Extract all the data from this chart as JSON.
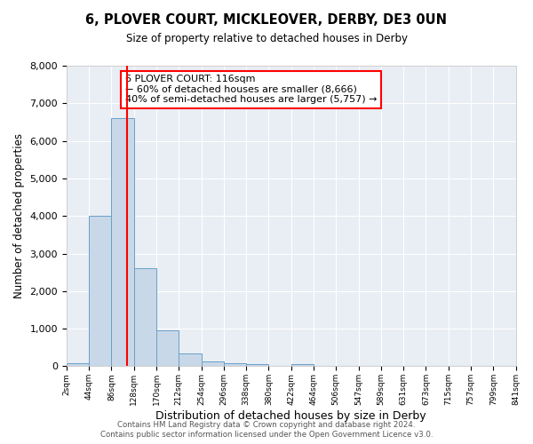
{
  "title": "6, PLOVER COURT, MICKLEOVER, DERBY, DE3 0UN",
  "subtitle": "Size of property relative to detached houses in Derby",
  "xlabel": "Distribution of detached houses by size in Derby",
  "ylabel": "Number of detached properties",
  "bar_color": "#c8d8e8",
  "bar_edge_color": "#6aa0c8",
  "background_color": "#e8eef4",
  "grid_color": "#ffffff",
  "ylim": [
    0,
    8000
  ],
  "yticks": [
    0,
    1000,
    2000,
    3000,
    4000,
    5000,
    6000,
    7000,
    8000
  ],
  "bin_labels": [
    "2sqm",
    "44sqm",
    "86sqm",
    "128sqm",
    "170sqm",
    "212sqm",
    "254sqm",
    "296sqm",
    "338sqm",
    "380sqm",
    "422sqm",
    "464sqm",
    "506sqm",
    "547sqm",
    "589sqm",
    "631sqm",
    "673sqm",
    "715sqm",
    "757sqm",
    "799sqm",
    "841sqm"
  ],
  "bar_heights": [
    75,
    4000,
    6600,
    2620,
    950,
    330,
    140,
    75,
    60,
    0,
    60,
    0,
    0,
    0,
    0,
    0,
    0,
    0,
    0,
    0
  ],
  "red_line_bin": 2.7,
  "annotation_title": "6 PLOVER COURT: 116sqm",
  "annotation_line1": "← 60% of detached houses are smaller (8,666)",
  "annotation_line2": "40% of semi-detached houses are larger (5,757) →",
  "footer1": "Contains HM Land Registry data © Crown copyright and database right 2024.",
  "footer2": "Contains public sector information licensed under the Open Government Licence v3.0."
}
